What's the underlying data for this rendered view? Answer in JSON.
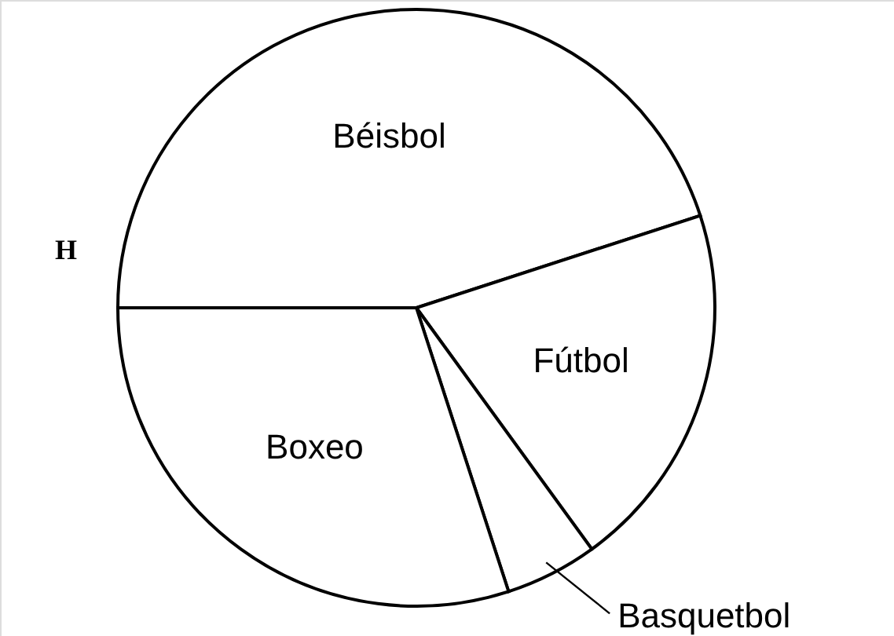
{
  "chart_data": {
    "type": "pie",
    "categories": [
      "Béisbol",
      "Fútbol",
      "Basquetbol",
      "Boxeo"
    ],
    "values": [
      45,
      20,
      5,
      30
    ],
    "colors": [
      "#ffffff",
      "#ffffff",
      "#ffffff",
      "#ffffff"
    ],
    "annotations": [
      "H"
    ]
  }
}
